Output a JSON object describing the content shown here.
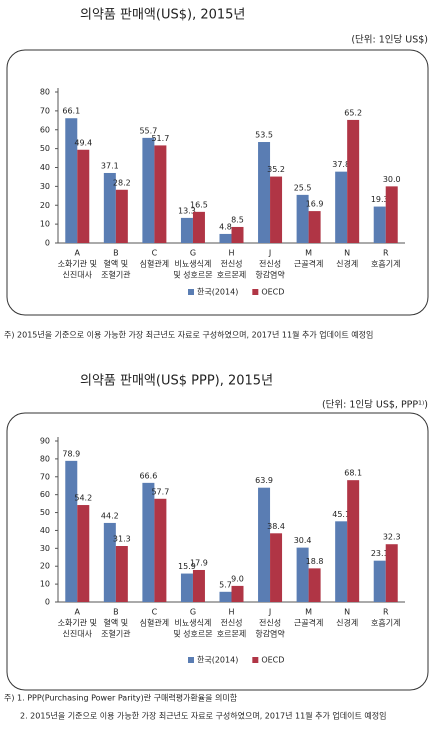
{
  "chart_data": [
    {
      "type": "bar",
      "title": "의약품 판매액(US$), 2015년",
      "subtitle": "(단위: 1인당 US$)",
      "categories": [
        [
          "A",
          "소화기관 및",
          "신진대사"
        ],
        [
          "B",
          "혈액 및",
          "조혈기관"
        ],
        [
          "C",
          "심혈관계"
        ],
        [
          "G",
          "비뇨생식계",
          "및 성호르몬"
        ],
        [
          "H",
          "전신성",
          "호르몬제"
        ],
        [
          "J",
          "전신성",
          "항감염약"
        ],
        [
          "M",
          "근골격계"
        ],
        [
          "N",
          "신경계"
        ],
        [
          "R",
          "호흡기계"
        ]
      ],
      "series": [
        {
          "name": "한국(2014)",
          "color": "#5a7db3",
          "values": [
            66.1,
            37.1,
            55.7,
            13.3,
            4.8,
            53.5,
            25.5,
            37.8,
            19.3
          ]
        },
        {
          "name": "OECD",
          "color": "#b03545",
          "values": [
            49.4,
            28.2,
            51.7,
            16.5,
            8.5,
            35.2,
            16.9,
            65.2,
            30.0
          ],
          "value_labels": [
            "49.4",
            "28.2",
            "51.7",
            "16.5",
            "8.5",
            "35.2",
            "16.9",
            "65.2",
            "30.0"
          ]
        }
      ],
      "ylim": [
        0,
        80
      ],
      "yticks": [
        0,
        10,
        20,
        30,
        40,
        50,
        60,
        70,
        80
      ],
      "notes": [
        "주) 2015년을 기준으로 이용 가능한 가장 최근년도 자료로 구성하였으며, 2017년 11월 추가 업데이트 예정임"
      ]
    },
    {
      "type": "bar",
      "title": "의약품 판매액(US$ PPP), 2015년",
      "subtitle": "(단위: 1인당 US$, PPP¹⁾)",
      "categories": [
        [
          "A",
          "소화기관 및",
          "신진대사"
        ],
        [
          "B",
          "혈액 및",
          "조혈기관"
        ],
        [
          "C",
          "심혈관계"
        ],
        [
          "G",
          "비뇨생식계",
          "및 성호르몬"
        ],
        [
          "H",
          "전신성",
          "호르몬제"
        ],
        [
          "J",
          "전신성",
          "항감염약"
        ],
        [
          "M",
          "근골격계"
        ],
        [
          "N",
          "신경계"
        ],
        [
          "R",
          "호흡기계"
        ]
      ],
      "series": [
        {
          "name": "한국(2014)",
          "color": "#5a7db3",
          "values": [
            78.9,
            44.2,
            66.6,
            15.9,
            5.7,
            63.9,
            30.4,
            45.1,
            23.1
          ]
        },
        {
          "name": "OECD",
          "color": "#b03545",
          "values": [
            54.2,
            31.3,
            57.7,
            17.9,
            9.0,
            38.4,
            18.8,
            68.1,
            32.3
          ],
          "value_labels": [
            "54.2",
            "31.3",
            "57.7",
            "17.9",
            "9.0",
            "38.4",
            "18.8",
            "68.1",
            "32.3"
          ]
        }
      ],
      "ylim": [
        0,
        90
      ],
      "yticks": [
        0,
        10,
        20,
        30,
        40,
        50,
        60,
        70,
        80,
        90
      ],
      "notes": [
        "주) 1. PPP(Purchasing Power Parity)란 구매력평가환율을 의미함",
        "2. 2015년을 기준으로 이용 가능한 가장 최근년도 자료로 구성하였으며, 2017년 11월 추가 업데이트 예정임"
      ]
    }
  ]
}
